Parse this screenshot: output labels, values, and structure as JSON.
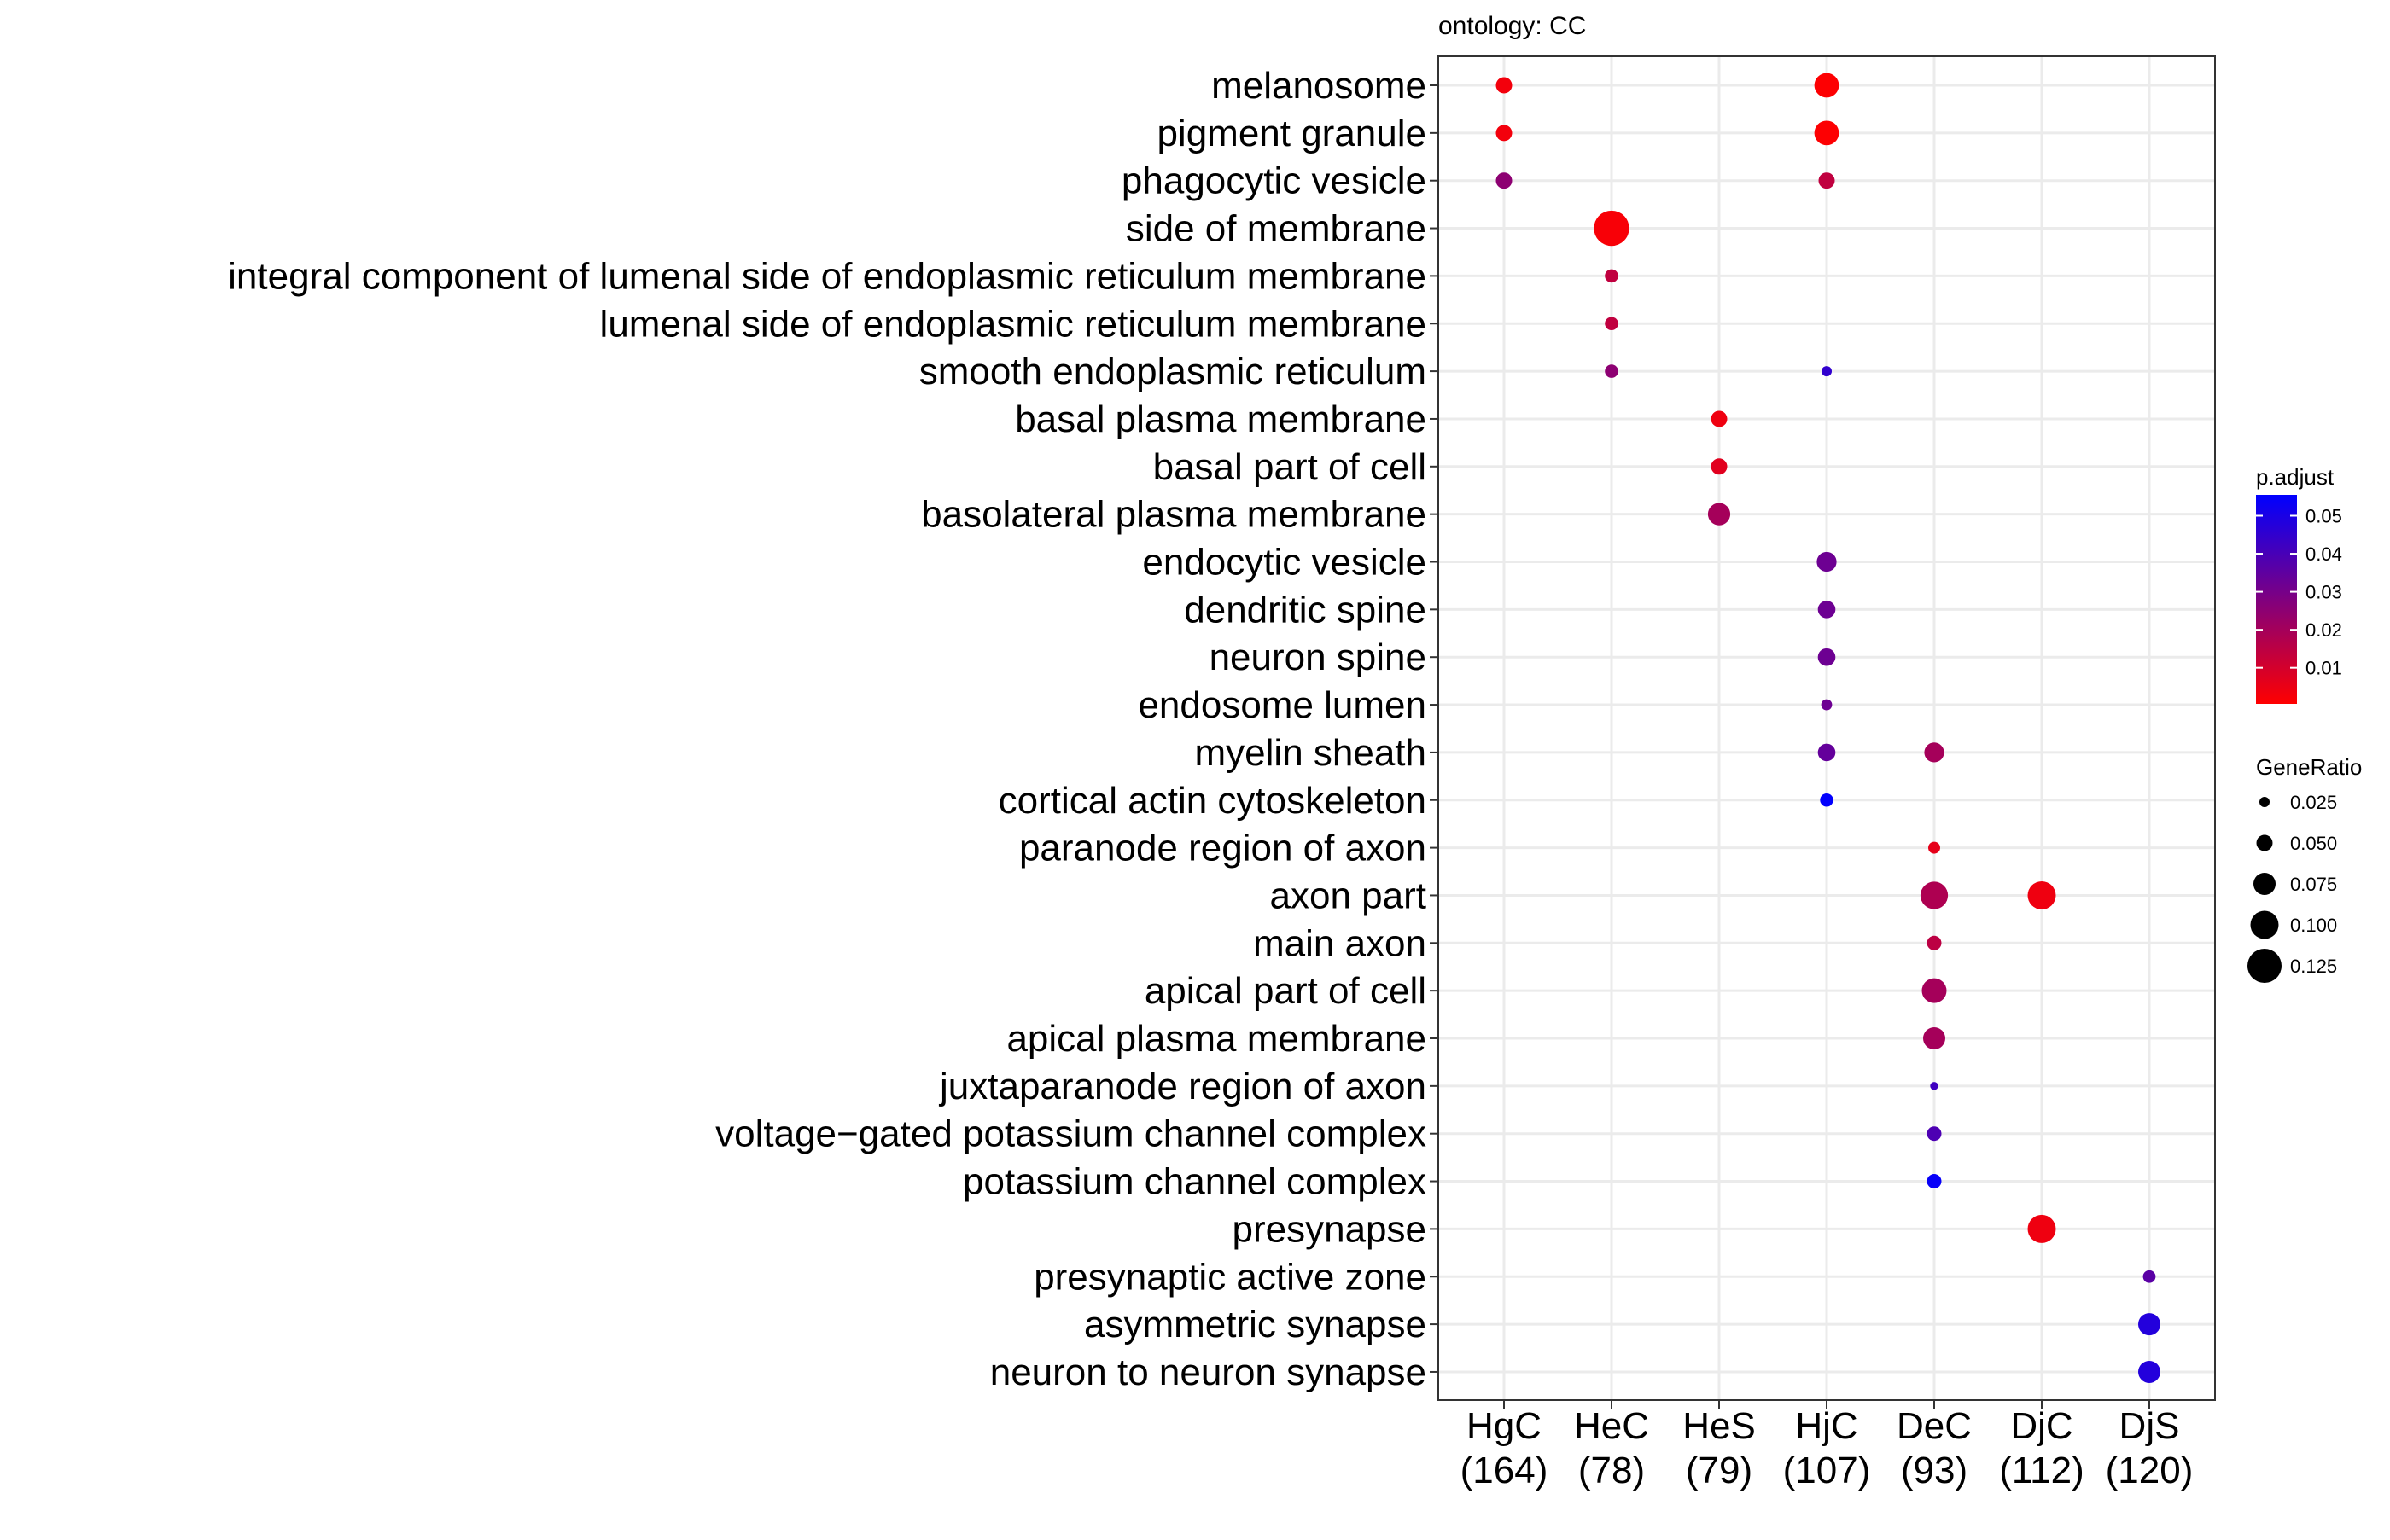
{
  "chart_data": {
    "type": "scatter",
    "subtitle": "ontology: CC",
    "x_categories": [
      {
        "name": "HgC",
        "count": "(164)"
      },
      {
        "name": "HeC",
        "count": "(78)"
      },
      {
        "name": "HeS",
        "count": "(79)"
      },
      {
        "name": "HjC",
        "count": "(107)"
      },
      {
        "name": "DeC",
        "count": "(93)"
      },
      {
        "name": "DjC",
        "count": "(112)"
      },
      {
        "name": "DjS",
        "count": "(120)"
      }
    ],
    "y_categories": [
      "melanosome",
      "pigment granule",
      "phagocytic vesicle",
      "side of membrane",
      "integral component of lumenal side of endoplasmic reticulum membrane",
      "lumenal side of endoplasmic reticulum membrane",
      "smooth endoplasmic reticulum",
      "basal plasma membrane",
      "basal part of cell",
      "basolateral plasma membrane",
      "endocytic vesicle",
      "dendritic spine",
      "neuron spine",
      "endosome lumen",
      "myelin sheath",
      "cortical actin cytoskeleton",
      "paranode region of axon",
      "axon part",
      "main axon",
      "apical part of cell",
      "apical plasma membrane",
      "juxtaparanode region of axon",
      "voltage−gated potassium channel complex",
      "potassium channel complex",
      "presynapse",
      "presynaptic active zone",
      "asymmetric synapse",
      "neuron to neuron synapse"
    ],
    "points": [
      {
        "x": "HgC",
        "y": "melanosome",
        "gene_ratio": 0.05,
        "p_adjust": 0.003
      },
      {
        "x": "HgC",
        "y": "pigment granule",
        "gene_ratio": 0.05,
        "p_adjust": 0.003
      },
      {
        "x": "HgC",
        "y": "phagocytic vesicle",
        "gene_ratio": 0.05,
        "p_adjust": 0.025
      },
      {
        "x": "HjC",
        "y": "melanosome",
        "gene_ratio": 0.085,
        "p_adjust": 0.001
      },
      {
        "x": "HjC",
        "y": "pigment granule",
        "gene_ratio": 0.085,
        "p_adjust": 0.001
      },
      {
        "x": "HjC",
        "y": "phagocytic vesicle",
        "gene_ratio": 0.05,
        "p_adjust": 0.014
      },
      {
        "x": "HeC",
        "y": "side of membrane",
        "gene_ratio": 0.13,
        "p_adjust": 0.002
      },
      {
        "x": "HeC",
        "y": "integral component of lumenal side of endoplasmic reticulum membrane",
        "gene_ratio": 0.038,
        "p_adjust": 0.014
      },
      {
        "x": "HeC",
        "y": "lumenal side of endoplasmic reticulum membrane",
        "gene_ratio": 0.038,
        "p_adjust": 0.014
      },
      {
        "x": "HeC",
        "y": "smooth endoplasmic reticulum",
        "gene_ratio": 0.038,
        "p_adjust": 0.025
      },
      {
        "x": "HjC",
        "y": "smooth endoplasmic reticulum",
        "gene_ratio": 0.025,
        "p_adjust": 0.045
      },
      {
        "x": "HeS",
        "y": "basal plasma membrane",
        "gene_ratio": 0.05,
        "p_adjust": 0.004
      },
      {
        "x": "HeS",
        "y": "basal part of cell",
        "gene_ratio": 0.05,
        "p_adjust": 0.007
      },
      {
        "x": "HeS",
        "y": "basolateral plasma membrane",
        "gene_ratio": 0.076,
        "p_adjust": 0.02
      },
      {
        "x": "HjC",
        "y": "endocytic vesicle",
        "gene_ratio": 0.065,
        "p_adjust": 0.032
      },
      {
        "x": "HjC",
        "y": "dendritic spine",
        "gene_ratio": 0.056,
        "p_adjust": 0.032
      },
      {
        "x": "HjC",
        "y": "neuron spine",
        "gene_ratio": 0.056,
        "p_adjust": 0.032
      },
      {
        "x": "HjC",
        "y": "endosome lumen",
        "gene_ratio": 0.028,
        "p_adjust": 0.032
      },
      {
        "x": "HjC",
        "y": "myelin sheath",
        "gene_ratio": 0.056,
        "p_adjust": 0.034
      },
      {
        "x": "HjC",
        "y": "cortical actin cytoskeleton",
        "gene_ratio": 0.037,
        "p_adjust": 0.055
      },
      {
        "x": "DeC",
        "y": "myelin sheath",
        "gene_ratio": 0.065,
        "p_adjust": 0.02
      },
      {
        "x": "DeC",
        "y": "paranode region of axon",
        "gene_ratio": 0.032,
        "p_adjust": 0.006
      },
      {
        "x": "DeC",
        "y": "axon part",
        "gene_ratio": 0.097,
        "p_adjust": 0.018
      },
      {
        "x": "DeC",
        "y": "main axon",
        "gene_ratio": 0.043,
        "p_adjust": 0.015
      },
      {
        "x": "DeC",
        "y": "apical part of cell",
        "gene_ratio": 0.086,
        "p_adjust": 0.02
      },
      {
        "x": "DeC",
        "y": "apical plasma membrane",
        "gene_ratio": 0.075,
        "p_adjust": 0.02
      },
      {
        "x": "DeC",
        "y": "juxtaparanode region of axon",
        "gene_ratio": 0.016,
        "p_adjust": 0.042
      },
      {
        "x": "DeC",
        "y": "voltage−gated potassium channel complex",
        "gene_ratio": 0.043,
        "p_adjust": 0.039
      },
      {
        "x": "DeC",
        "y": "potassium channel complex",
        "gene_ratio": 0.043,
        "p_adjust": 0.054
      },
      {
        "x": "DjC",
        "y": "axon part",
        "gene_ratio": 0.1,
        "p_adjust": 0.004
      },
      {
        "x": "DjC",
        "y": "presynapse",
        "gene_ratio": 0.1,
        "p_adjust": 0.004
      },
      {
        "x": "DjS",
        "y": "presynaptic active zone",
        "gene_ratio": 0.035,
        "p_adjust": 0.036
      },
      {
        "x": "DjS",
        "y": "asymmetric synapse",
        "gene_ratio": 0.075,
        "p_adjust": 0.048
      },
      {
        "x": "DjS",
        "y": "neuron to neuron synapse",
        "gene_ratio": 0.075,
        "p_adjust": 0.048
      }
    ],
    "color_legend": {
      "title": "p.adjust",
      "ticks": [
        0.01,
        0.02,
        0.03,
        0.04,
        0.05
      ],
      "tick_labels": [
        "0.01",
        "0.02",
        "0.03",
        "0.04",
        "0.05"
      ],
      "range": [
        0.0005,
        0.0555
      ],
      "low_color": "#ff0000",
      "high_color": "#0000ff"
    },
    "size_legend": {
      "title": "GeneRatio",
      "ticks": [
        0.025,
        0.05,
        0.075,
        0.1,
        0.125
      ],
      "tick_labels": [
        "0.025",
        "0.050",
        "0.075",
        "0.100",
        "0.125"
      ]
    },
    "grid": true,
    "legend_position": "right"
  }
}
